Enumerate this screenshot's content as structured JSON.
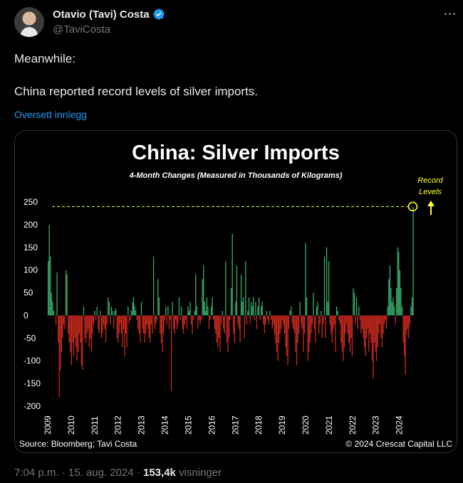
{
  "author": {
    "name": "Otavio (Tavi) Costa",
    "handle": "@TaviCosta"
  },
  "tweet": {
    "line1": "Meanwhile:",
    "line2": "China reported record levels of silver imports.",
    "translate_label": "Oversett innlegg"
  },
  "meta": {
    "time": "7:04 p.m.",
    "sep1": "·",
    "date": "15. aug. 2024",
    "sep2": "·",
    "views": "153,4k",
    "views_label": "visninger"
  },
  "colors": {
    "positive": "#3cb371",
    "negative": "#d12b1f",
    "accent": "#ffff33",
    "verified": "#1d9bf0"
  },
  "chart_data": {
    "type": "bar",
    "title": "China: Silver Imports",
    "subtitle": "4-Month Changes (Measured in Thousands of Kilograms)",
    "ylim": [
      -200,
      250
    ],
    "yticks": [
      250,
      200,
      150,
      100,
      50,
      0,
      -50,
      -100,
      -150,
      -200
    ],
    "xticks": [
      "2009",
      "2010",
      "2011",
      "2012",
      "2013",
      "2014",
      "2015",
      "2016",
      "2017",
      "2018",
      "2019",
      "2020",
      "2021",
      "2022",
      "2023",
      "2024"
    ],
    "x_start_year": 2009,
    "record_level": 240,
    "annotation": [
      "Record",
      "Levels"
    ],
    "source": "Source: Bloomberg; Tavi Costa",
    "copyright": "© 2024 Crescat Capital LLC",
    "values": [
      120,
      200,
      130,
      50,
      30,
      10,
      0,
      -20,
      95,
      -60,
      -180,
      -120,
      -80,
      -50,
      -20,
      -30,
      100,
      90,
      -40,
      -60,
      -80,
      -110,
      -60,
      -90,
      -50,
      -70,
      -100,
      -80,
      -40,
      -60,
      -110,
      -120,
      20,
      -50,
      -60,
      -40,
      -30,
      -70,
      -50,
      -80,
      -40,
      -20,
      10,
      -10,
      20,
      -30,
      -40,
      10,
      -50,
      -40,
      -20,
      -30,
      -60,
      -20,
      40,
      30,
      -20,
      20,
      10,
      -30,
      10,
      15,
      -50,
      -60,
      -40,
      -20,
      -40,
      -70,
      -30,
      -90,
      -40,
      -70,
      20,
      -20,
      -10,
      10,
      30,
      40,
      20,
      10,
      -10,
      -30,
      -40,
      -60,
      30,
      -30,
      -40,
      -60,
      -40,
      -20,
      -30,
      -50,
      -60,
      -20,
      -40,
      130,
      -30,
      -20,
      -10,
      80,
      40,
      -40,
      -60,
      -80,
      -40,
      -10,
      20,
      -20,
      20,
      -30,
      -10,
      -165,
      30,
      -30,
      -40,
      -10,
      -30,
      -20,
      40,
      -10,
      20,
      -30,
      -40,
      -20,
      -10,
      -30,
      20,
      10,
      30,
      -20,
      -40,
      -10,
      10,
      90,
      20,
      -30,
      -10,
      -20,
      -10,
      80,
      110,
      30,
      10,
      40,
      20,
      -30,
      -10,
      20,
      40,
      -10,
      -30,
      -40,
      -60,
      -70,
      -50,
      -80,
      -20,
      10,
      -30,
      -40,
      120,
      -60,
      -80,
      -50,
      -10,
      60,
      180,
      -40,
      -60,
      30,
      110,
      -20,
      -30,
      -60,
      90,
      30,
      40,
      -50,
      120,
      -20,
      10,
      40,
      -20,
      30,
      20,
      40,
      -10,
      30,
      -30,
      20,
      40,
      -10,
      20,
      30,
      -20,
      -40,
      -20,
      10,
      -10,
      -20,
      10,
      -10,
      -30,
      -20,
      -40,
      -60,
      -80,
      -100,
      -60,
      -40,
      -30,
      -10,
      -20,
      -40,
      -70,
      -90,
      -110,
      -30,
      10,
      20,
      -20,
      -30,
      -40,
      -80,
      -110,
      -60,
      -40,
      30,
      -20,
      -30,
      -80,
      -40,
      160,
      40,
      -100,
      -80,
      -60,
      -40,
      -20,
      50,
      -30,
      -60,
      20,
      30,
      -40,
      -20,
      10,
      -50,
      -20,
      130,
      -50,
      150,
      30,
      120,
      -20,
      -40,
      -60,
      -30,
      -20,
      -80,
      20,
      10,
      -10,
      -20,
      -60,
      -80,
      -100,
      -70,
      -40,
      -20,
      -40,
      -60,
      -80,
      -50,
      -90,
      60,
      50,
      -20,
      40,
      -30,
      20,
      -10,
      -40,
      -30,
      -50,
      -70,
      -90,
      -50,
      -30,
      -80,
      -40,
      -60,
      -100,
      -140,
      -60,
      -80,
      -100,
      -70,
      -40,
      -20,
      -50,
      -70,
      -40,
      -20,
      -10,
      -30,
      20,
      80,
      110,
      60,
      30,
      40,
      20,
      -20,
      60,
      150,
      140,
      100,
      60,
      20,
      -60,
      -90,
      -130,
      -40,
      -30,
      -50,
      -20,
      20,
      40,
      240
    ]
  }
}
